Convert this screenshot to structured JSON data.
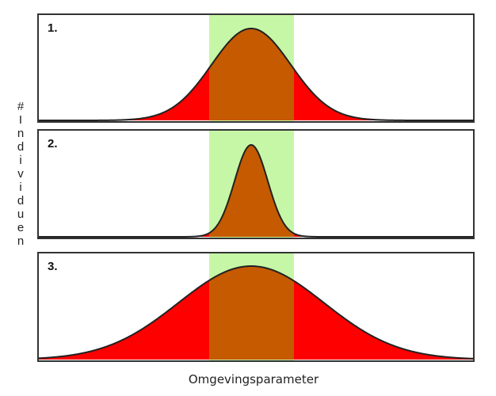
{
  "y_axis_label": "# Individuen",
  "x_axis_label": "Omgevingsparameter",
  "colors": {
    "tolerance_band": "#c6f7a6",
    "inside_fill": "#c55a00",
    "outside_fill": "#ff0000",
    "curve": "#222222",
    "frame": "#333333"
  },
  "panels": [
    {
      "label": "1.",
      "spread": "medium"
    },
    {
      "label": "2.",
      "spread": "narrow"
    },
    {
      "label": "3.",
      "spread": "wide"
    }
  ]
}
